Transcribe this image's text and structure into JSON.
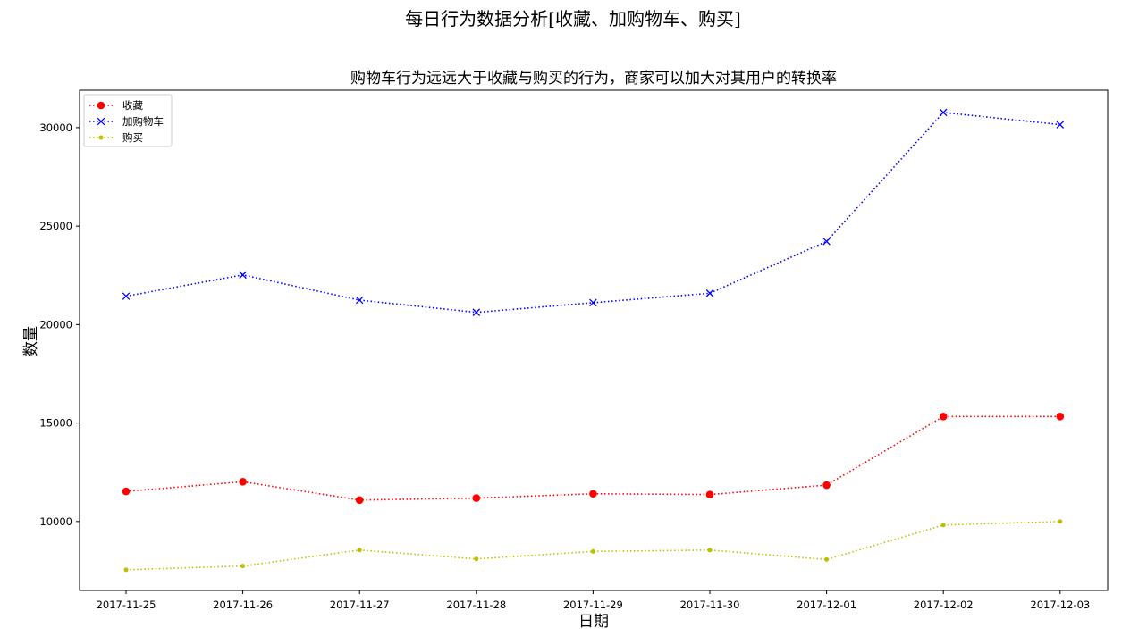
{
  "chart_data": {
    "type": "line",
    "suptitle": "每日行为数据分析[收藏、加购物车、购买]",
    "title": "购物车行为远远大于收藏与购买的行为，商家可以加大对其用户的转换率",
    "xlabel": "日期",
    "ylabel": "数量",
    "categories": [
      "2017-11-25",
      "2017-11-26",
      "2017-11-27",
      "2017-11-28",
      "2017-11-29",
      "2017-11-30",
      "2017-12-01",
      "2017-12-02",
      "2017-12-03"
    ],
    "ylim": [
      6500,
      31900
    ],
    "yticks": [
      10000,
      15000,
      20000,
      25000,
      30000
    ],
    "legend_position": "upper left",
    "grid": false,
    "series": [
      {
        "name": "收藏",
        "color": "#ff0000",
        "marker": "circle",
        "linestyle": "dotted",
        "values": [
          11530,
          12020,
          11090,
          11190,
          11410,
          11370,
          11850,
          15330,
          15330
        ]
      },
      {
        "name": "加购物车",
        "color": "#0000ff",
        "marker": "x",
        "linestyle": "dotted",
        "values": [
          21440,
          22520,
          21240,
          20620,
          21110,
          21590,
          24220,
          30770,
          30150
        ]
      },
      {
        "name": "购买",
        "color": "#bfbf00",
        "marker": "point",
        "linestyle": "dotted",
        "values": [
          7550,
          7740,
          8550,
          8100,
          8480,
          8550,
          8070,
          9820,
          10000
        ]
      }
    ]
  }
}
